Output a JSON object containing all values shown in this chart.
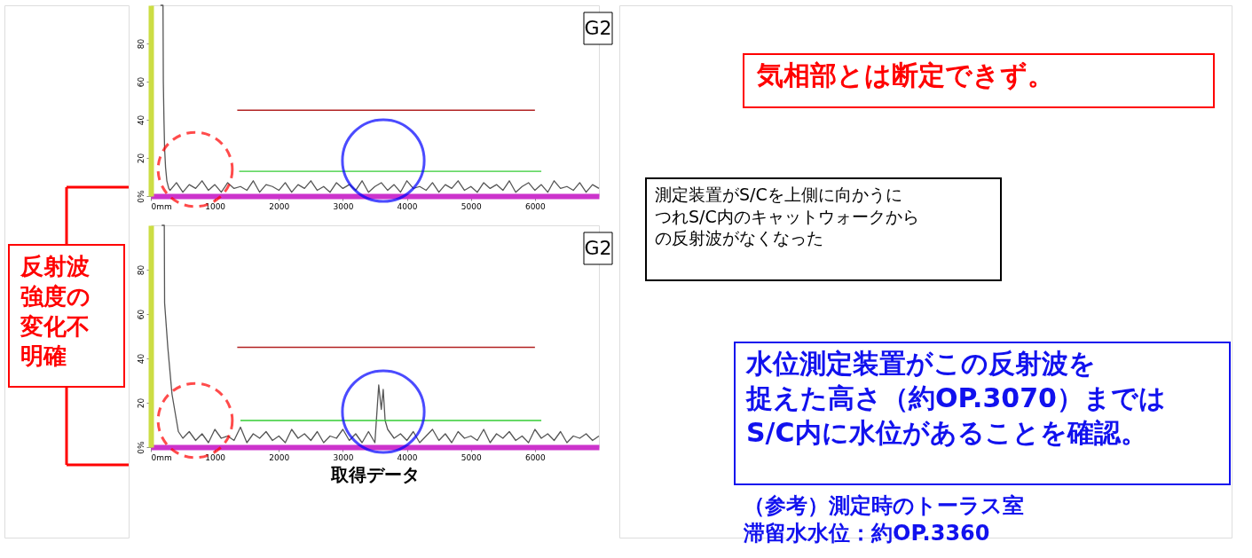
{
  "chart_data": [
    {
      "type": "line",
      "xlim": [
        0,
        7000
      ],
      "ylim": [
        0,
        100
      ],
      "xticks": [
        {
          "value": 0,
          "label": "0mm"
        },
        1000,
        2000,
        3000,
        4000,
        5000,
        6000
      ],
      "yticks": [
        {
          "value": 0,
          "label": "0%"
        },
        20,
        40,
        60,
        80
      ],
      "grid": false,
      "legend": false,
      "series": [
        {
          "color": "#555555",
          "x": [
            150,
            190,
            195,
            205,
            215,
            230,
            250,
            280,
            300,
            400,
            500,
            600,
            700,
            800,
            900,
            1000,
            1100,
            1200,
            1300,
            1400,
            1500,
            1600,
            1700,
            1800,
            1900,
            2000,
            2100,
            2200,
            2300,
            2400,
            2500,
            2600,
            2700,
            2800,
            2900,
            3000,
            3100,
            3200,
            3300,
            3400,
            3500,
            3600,
            3700,
            3800,
            3900,
            4000,
            4100,
            4200,
            4300,
            4400,
            4500,
            4600,
            4700,
            4800,
            4900,
            5000,
            5100,
            5200,
            5300,
            5400,
            5500,
            5600,
            5700,
            5800,
            5900,
            6000,
            6100,
            6200,
            6300,
            6400,
            6500,
            6600,
            6700,
            6800,
            6900,
            7000
          ],
          "values": [
            100,
            100,
            60,
            40,
            25,
            15,
            8,
            4,
            3,
            7,
            2,
            6,
            4,
            8,
            3,
            6,
            2,
            7,
            4,
            5,
            3,
            8,
            2,
            6,
            5,
            3,
            7,
            2,
            6,
            4,
            8,
            3,
            5,
            2,
            7,
            4,
            6,
            3,
            8,
            2,
            5,
            7,
            3,
            6,
            2,
            8,
            4,
            5,
            3,
            7,
            2,
            6,
            4,
            8,
            3,
            5,
            2,
            7,
            4,
            6,
            3,
            8,
            2,
            5,
            7,
            3,
            6,
            2,
            8,
            4,
            5,
            3,
            7,
            2,
            6,
            4
          ]
        },
        {
          "color": "#b22222",
          "x": [
            1350,
            6000
          ],
          "values": [
            45,
            45
          ]
        },
        {
          "color": "#33cc33",
          "x": [
            1380,
            6100
          ],
          "values": [
            13,
            13
          ]
        }
      ],
      "annotations": [
        "G2",
        "反射波強度の変化不明確",
        "気相部とは断定できず。",
        "測定装置がS/Cを上側に向かうにつれS/C内のキャットウォークからの反射波がなくなった"
      ]
    },
    {
      "type": "line",
      "xlim": [
        0,
        7000
      ],
      "ylim": [
        0,
        100
      ],
      "xticks": [
        {
          "value": 0,
          "label": "0mm"
        },
        1000,
        2000,
        3000,
        4000,
        5000,
        6000
      ],
      "yticks": [
        {
          "value": 0,
          "label": "0%"
        },
        20,
        40,
        60,
        80
      ],
      "grid": false,
      "legend": false,
      "series": [
        {
          "color": "#555555",
          "x": [
            170,
            210,
            215,
            265,
            330,
            430,
            500,
            600,
            700,
            800,
            900,
            1000,
            1100,
            1200,
            1300,
            1400,
            1500,
            1600,
            1700,
            1800,
            1900,
            2000,
            2100,
            2200,
            2300,
            2400,
            2500,
            2600,
            2700,
            2800,
            2900,
            3000,
            3100,
            3200,
            3300,
            3400,
            3500,
            3560,
            3600,
            3630,
            3660,
            3700,
            3800,
            3900,
            4000,
            4100,
            4200,
            4300,
            4400,
            4500,
            4600,
            4700,
            4800,
            4900,
            5000,
            5100,
            5200,
            5300,
            5400,
            5500,
            5600,
            5700,
            5800,
            5900,
            6000,
            6100,
            6200,
            6300,
            6400,
            6500,
            6600,
            6700,
            6800,
            6900,
            7000
          ],
          "values": [
            100,
            100,
            65,
            45,
            24,
            7,
            4,
            7,
            3,
            6,
            2,
            8,
            4,
            5,
            3,
            9,
            2,
            6,
            4,
            7,
            3,
            5,
            2,
            8,
            4,
            6,
            3,
            7,
            2,
            5,
            4,
            8,
            3,
            6,
            2,
            7,
            2,
            28,
            17,
            26,
            12,
            8,
            4,
            6,
            3,
            7,
            2,
            5,
            8,
            3,
            6,
            2,
            7,
            4,
            5,
            3,
            8,
            2,
            6,
            4,
            7,
            3,
            5,
            2,
            8,
            4,
            6,
            3,
            7,
            2,
            5,
            4,
            6,
            3,
            5
          ]
        },
        {
          "color": "#b22222",
          "x": [
            1350,
            6000
          ],
          "values": [
            45,
            45
          ]
        },
        {
          "color": "#33cc33",
          "x": [
            1400,
            6100
          ],
          "values": [
            12,
            12
          ]
        }
      ],
      "annotations": [
        "G2",
        "水位測定装置がこの反射波を捉えた高さ（約OP.3070）まではS/C内に水位があることを確認。",
        "（参考）測定時のトーラス室滞留水水位：約OP.3360",
        "取得データ"
      ]
    }
  ]
}
